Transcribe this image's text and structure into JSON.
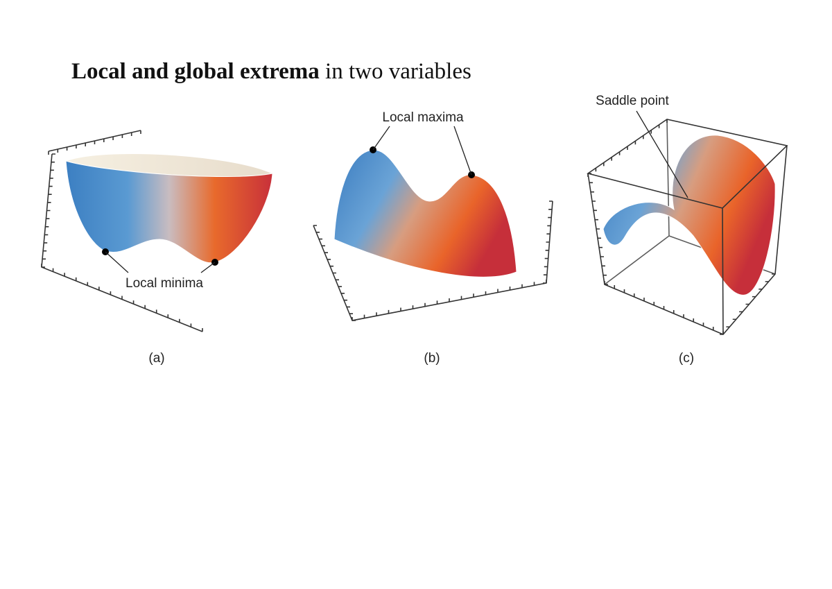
{
  "title": {
    "bold": "Local and global extrema",
    "rest": "in two variables"
  },
  "figures": [
    {
      "annotation": "Local minima",
      "caption": "(a)"
    },
    {
      "annotation": "Local maxima",
      "caption": "(b)"
    },
    {
      "annotation": "Saddle point",
      "caption": "(c)"
    }
  ]
}
